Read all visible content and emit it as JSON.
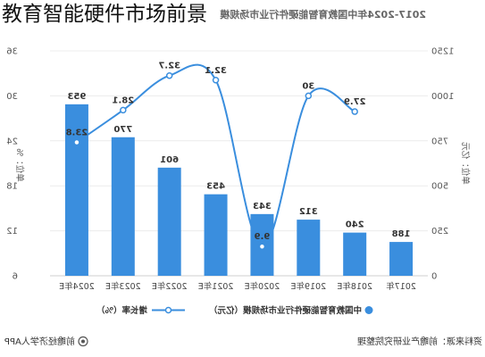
{
  "overlay_title": "教育智能硬件市场前景",
  "mirrored": true,
  "colors": {
    "bar": "#3a8ede",
    "line": "#3a8ede",
    "grid": "#ececec",
    "axis": "#cfcfcf"
  },
  "chart_data": {
    "type": "bar",
    "title": "2017-2024年中国教育智能硬件行业市场规模",
    "categories": [
      "2017年",
      "2018年E",
      "2019年E",
      "2020年E",
      "2021年E",
      "2022年E",
      "2023年E",
      "2024年E"
    ],
    "series": [
      {
        "name": "中国教育智能硬件行业市场规模（亿元）",
        "type": "bar",
        "axis": "left",
        "values": [
          188,
          240,
          312,
          343,
          453,
          601,
          770,
          953
        ]
      },
      {
        "name": "增长率（%）",
        "type": "line",
        "axis": "right",
        "values": [
          null,
          27.9,
          30,
          9.9,
          32.1,
          32.7,
          28.1,
          23.8
        ]
      }
    ],
    "y_left": {
      "label": "单位：亿元",
      "range": [
        0,
        1250
      ],
      "ticks": [
        0,
        250,
        500,
        750,
        1000,
        1250
      ]
    },
    "y_right": {
      "label": "单位：%",
      "range": [
        6,
        36
      ],
      "ticks": [
        6,
        12,
        18,
        24,
        30,
        36
      ]
    },
    "grid": true,
    "legend": "bottom"
  },
  "footer": {
    "source": "资料来源：前瞻产业研究院整理",
    "brand": "前瞻经济学人APP",
    "brand_icon": "qianzhan-logo-icon"
  }
}
